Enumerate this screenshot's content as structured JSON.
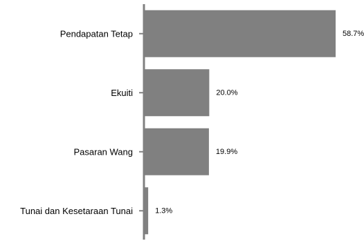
{
  "chart_data": {
    "type": "bar",
    "orientation": "horizontal",
    "categories": [
      "Pendapatan Tetap",
      "Ekuiti",
      "Pasaran Wang",
      "Tunai dan Kesetaraan Tunai"
    ],
    "values": [
      58.7,
      20.0,
      19.9,
      1.3
    ],
    "value_labels": [
      "58.7%",
      "20.0%",
      "19.9%",
      "1.3%"
    ],
    "unit": "%",
    "xlim": [
      0,
      58.7
    ],
    "grid": false,
    "legend": "none",
    "bar_color": "#808080",
    "axis_color": "#808080",
    "text_color": "#000000"
  }
}
